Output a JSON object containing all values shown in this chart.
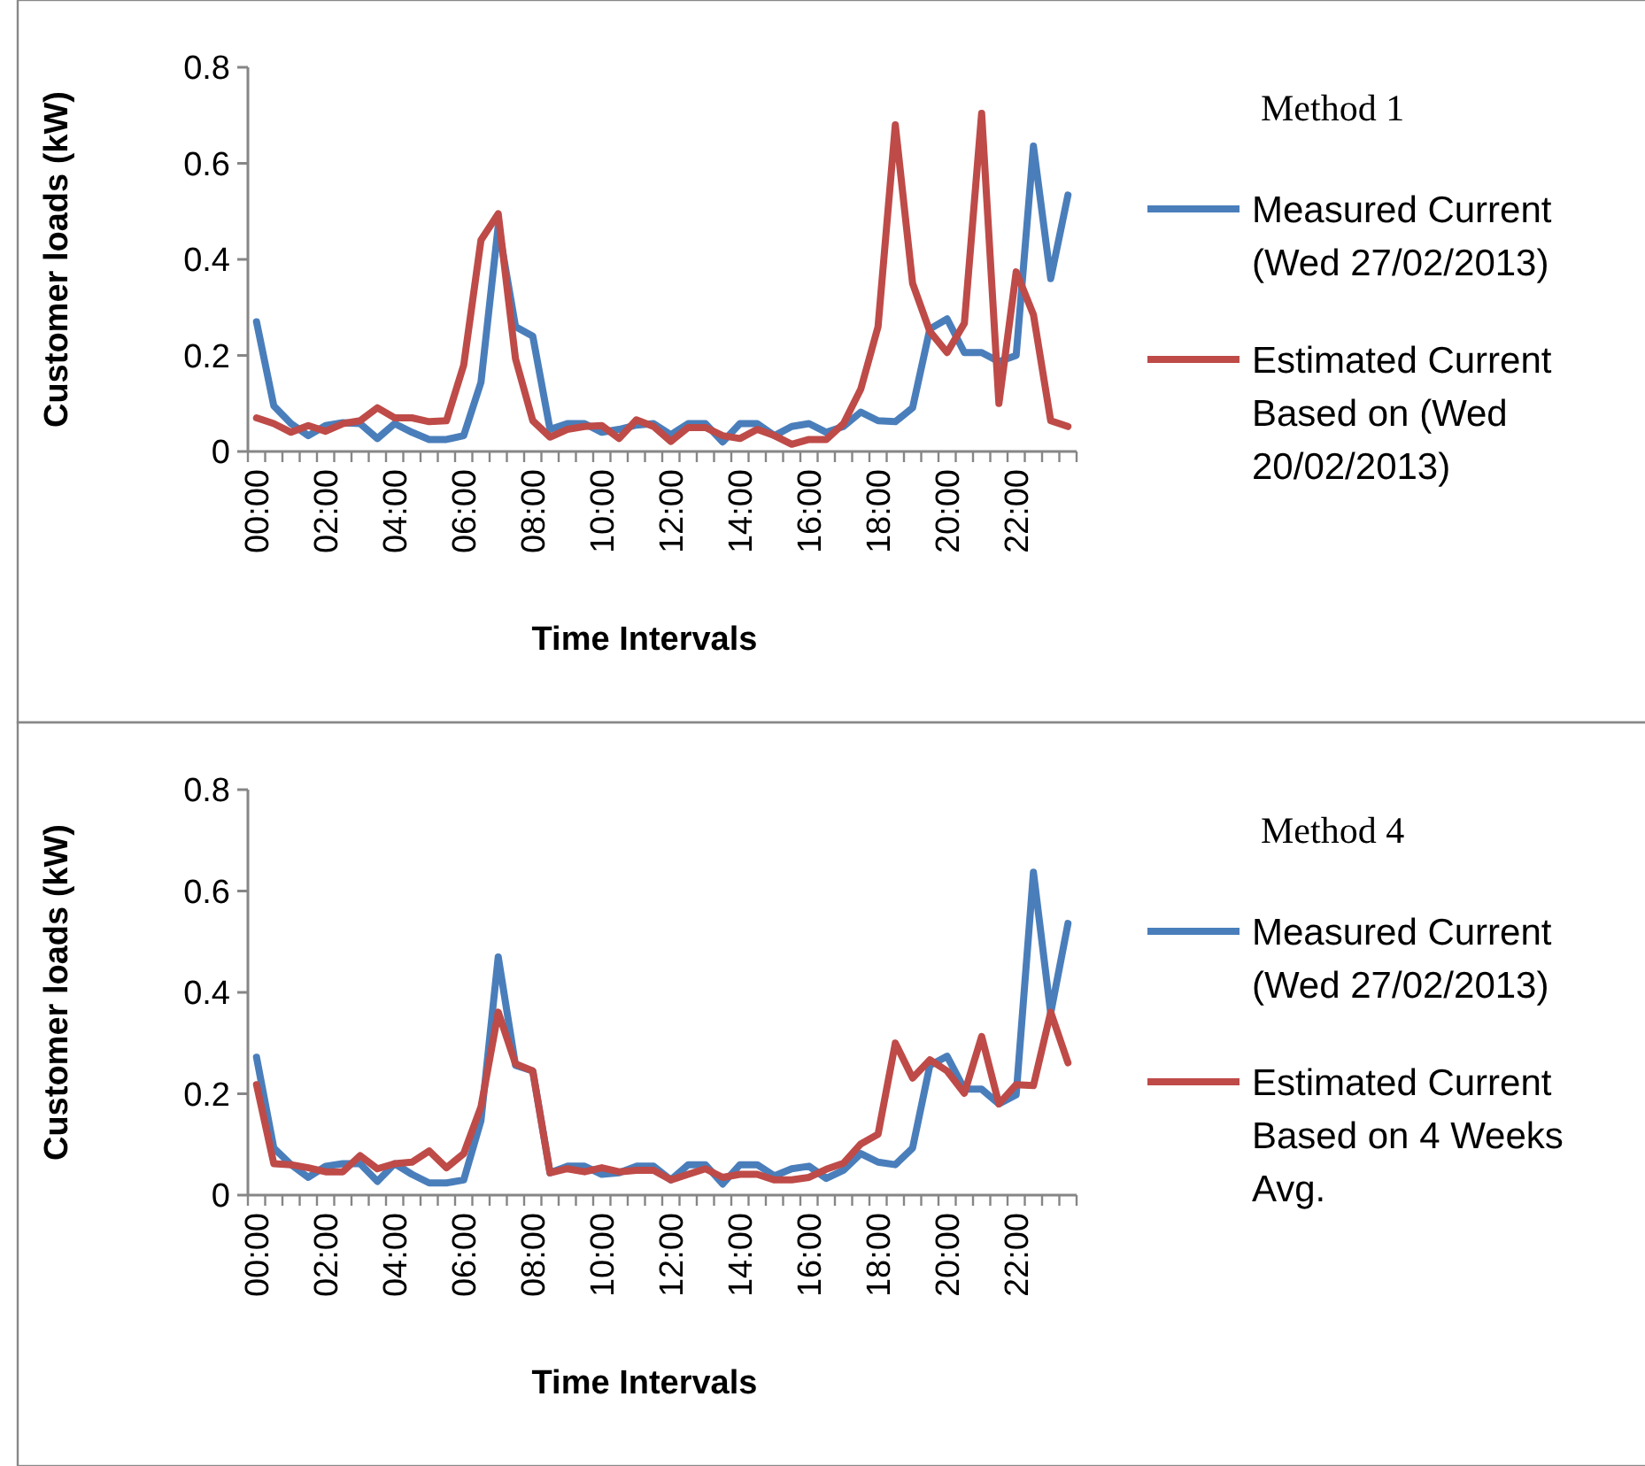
{
  "chart_data": [
    {
      "type": "line",
      "legend_title": "Method 1",
      "xlabel": "Time Intervals",
      "ylabel": "Customer loads (kW)",
      "categories": [
        "00:00",
        null,
        null,
        null,
        "02:00",
        null,
        null,
        null,
        "04:00",
        null,
        null,
        null,
        "06:00",
        null,
        null,
        null,
        "08:00",
        null,
        null,
        null,
        "10:00",
        null,
        null,
        null,
        "12:00",
        null,
        null,
        null,
        "14:00",
        null,
        null,
        null,
        "16:00",
        null,
        null,
        null,
        "18:00",
        null,
        null,
        null,
        "20:00",
        null,
        null,
        null,
        "22:00",
        null,
        null,
        null
      ],
      "series": [
        {
          "name": "Measured Current (Wed 27/02/2013)",
          "color": "#4a7ebb",
          "values": [
            0.27,
            0.095,
            0.058,
            0.033,
            0.054,
            0.06,
            0.058,
            0.027,
            0.058,
            0.04,
            0.025,
            0.025,
            0.033,
            0.144,
            0.47,
            0.26,
            0.24,
            0.046,
            0.058,
            0.058,
            0.04,
            0.046,
            0.055,
            0.058,
            0.035,
            0.058,
            0.058,
            0.02,
            0.058,
            0.058,
            0.033,
            0.052,
            0.058,
            0.04,
            0.052,
            0.082,
            0.064,
            0.062,
            0.091,
            0.255,
            0.276,
            0.206,
            0.206,
            0.187,
            0.2,
            0.636,
            0.36,
            0.534
          ]
        },
        {
          "name": "Estimated Current Based on (Wed 20/02/2013)",
          "color": "#be4b48",
          "values": [
            0.07,
            0.058,
            0.04,
            0.054,
            0.042,
            0.058,
            0.064,
            0.091,
            0.07,
            0.07,
            0.062,
            0.064,
            0.18,
            0.44,
            0.495,
            0.193,
            0.064,
            0.03,
            0.046,
            0.052,
            0.054,
            0.027,
            0.066,
            0.052,
            0.021,
            0.05,
            0.05,
            0.033,
            0.027,
            0.046,
            0.033,
            0.015,
            0.025,
            0.025,
            0.058,
            0.13,
            0.26,
            0.68,
            0.35,
            0.25,
            0.206,
            0.267,
            0.704,
            0.1,
            0.374,
            0.285,
            0.064,
            0.052
          ]
        }
      ],
      "ylim": [
        0,
        0.8
      ],
      "yticks": [
        0,
        0.2,
        0.4,
        0.6,
        0.8
      ],
      "grid": false,
      "legend": "right",
      "marker": "none",
      "line_style": "solid"
    },
    {
      "type": "line",
      "legend_title": "Method 4",
      "xlabel": "Time Intervals",
      "ylabel": "Customer loads (kW)",
      "categories": [
        "00:00",
        null,
        null,
        null,
        "02:00",
        null,
        null,
        null,
        "04:00",
        null,
        null,
        null,
        "06:00",
        null,
        null,
        null,
        "08:00",
        null,
        null,
        null,
        "10:00",
        null,
        null,
        null,
        "12:00",
        null,
        null,
        null,
        "14:00",
        null,
        null,
        null,
        "16:00",
        null,
        null,
        null,
        "18:00",
        null,
        null,
        null,
        "20:00",
        null,
        null,
        null,
        "22:00",
        null,
        null,
        null
      ],
      "series": [
        {
          "name": "Measured Current (Wed 27/02/2013)",
          "color": "#4a7ebb",
          "values": [
            0.272,
            0.093,
            0.06,
            0.035,
            0.057,
            0.062,
            0.062,
            0.027,
            0.062,
            0.041,
            0.024,
            0.024,
            0.03,
            0.147,
            0.47,
            0.256,
            0.245,
            0.044,
            0.057,
            0.057,
            0.041,
            0.044,
            0.057,
            0.057,
            0.03,
            0.06,
            0.06,
            0.022,
            0.06,
            0.06,
            0.038,
            0.052,
            0.057,
            0.033,
            0.049,
            0.082,
            0.065,
            0.06,
            0.093,
            0.256,
            0.274,
            0.209,
            0.209,
            0.18,
            0.198,
            0.637,
            0.359,
            0.536
          ]
        },
        {
          "name": "Estimated Current Based on 4 Weeks Avg.",
          "color": "#be4b48",
          "values": [
            0.218,
            0.062,
            0.06,
            0.054,
            0.046,
            0.046,
            0.078,
            0.052,
            0.062,
            0.065,
            0.087,
            0.054,
            0.082,
            0.174,
            0.361,
            0.259,
            0.245,
            0.044,
            0.052,
            0.046,
            0.054,
            0.046,
            0.049,
            0.049,
            0.03,
            0.041,
            0.052,
            0.035,
            0.041,
            0.041,
            0.03,
            0.03,
            0.035,
            0.051,
            0.063,
            0.101,
            0.12,
            0.3,
            0.231,
            0.267,
            0.245,
            0.201,
            0.313,
            0.18,
            0.218,
            0.216,
            0.361,
            0.261
          ]
        }
      ],
      "ylim": [
        0,
        0.8
      ],
      "yticks": [
        0,
        0.2,
        0.4,
        0.6,
        0.8
      ],
      "grid": false,
      "legend": "right",
      "marker": "none",
      "line_style": "solid"
    }
  ]
}
